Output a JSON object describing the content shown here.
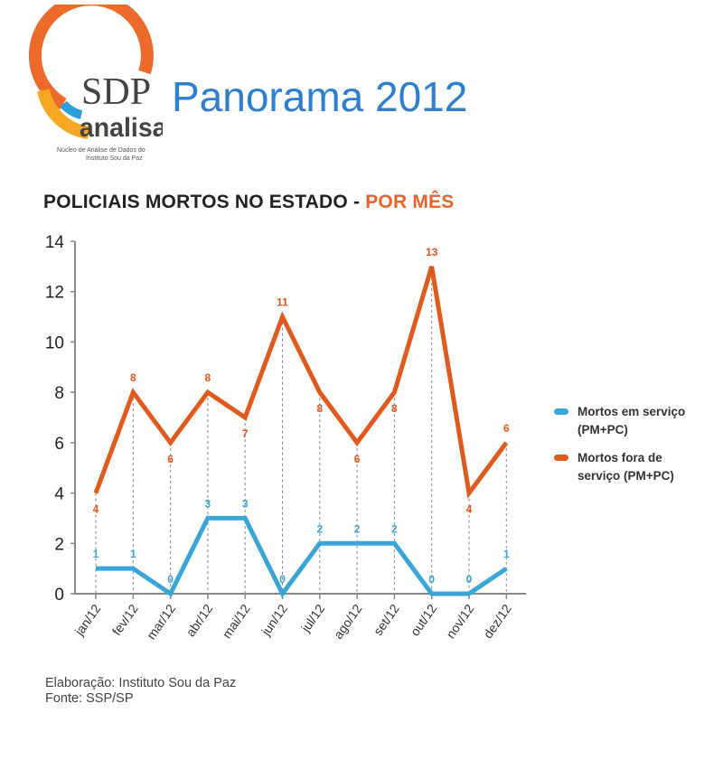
{
  "header": {
    "logo_text": "SDP",
    "logo_sub": "analisa",
    "logo_caption_1": "Núcleo de Análise de Dados do",
    "logo_caption_2": "Instituto Sou da Paz",
    "title": "Panorama 2012"
  },
  "chart_data": {
    "type": "line",
    "title": "POLICIAIS MORTOS NO ESTADO - ",
    "title_highlight": "POR MÊS",
    "categories": [
      "jan/12",
      "fev/12",
      "mar/12",
      "abr/12",
      "mai/12",
      "jun/12",
      "jul/12",
      "ago/12",
      "set/12",
      "out/12",
      "nov/12",
      "dez/12"
    ],
    "series": [
      {
        "name": "Mortos em serviço (PM+PC)",
        "name_1": "Mortos em serviço",
        "name_2": "(PM+PC)",
        "color": "#3aa6d8",
        "values": [
          1,
          1,
          0,
          3,
          3,
          0,
          2,
          2,
          2,
          0,
          0,
          1
        ]
      },
      {
        "name": "Mortos fora de serviço (PM+PC)",
        "name_1": "Mortos fora de",
        "name_2": "serviço (PM+PC)",
        "color": "#e05a1e",
        "values": [
          4,
          8,
          6,
          8,
          7,
          11,
          8,
          6,
          8,
          13,
          4,
          6
        ]
      }
    ],
    "yticks": [
      0,
      2,
      4,
      6,
      8,
      10,
      12,
      14
    ],
    "ylim": [
      0,
      14
    ],
    "xlabel": "",
    "ylabel": "",
    "legend": "right"
  },
  "footer": {
    "line1": "Elaboração: Instituto Sou da Paz",
    "line2": "Fonte: SSP/SP"
  }
}
